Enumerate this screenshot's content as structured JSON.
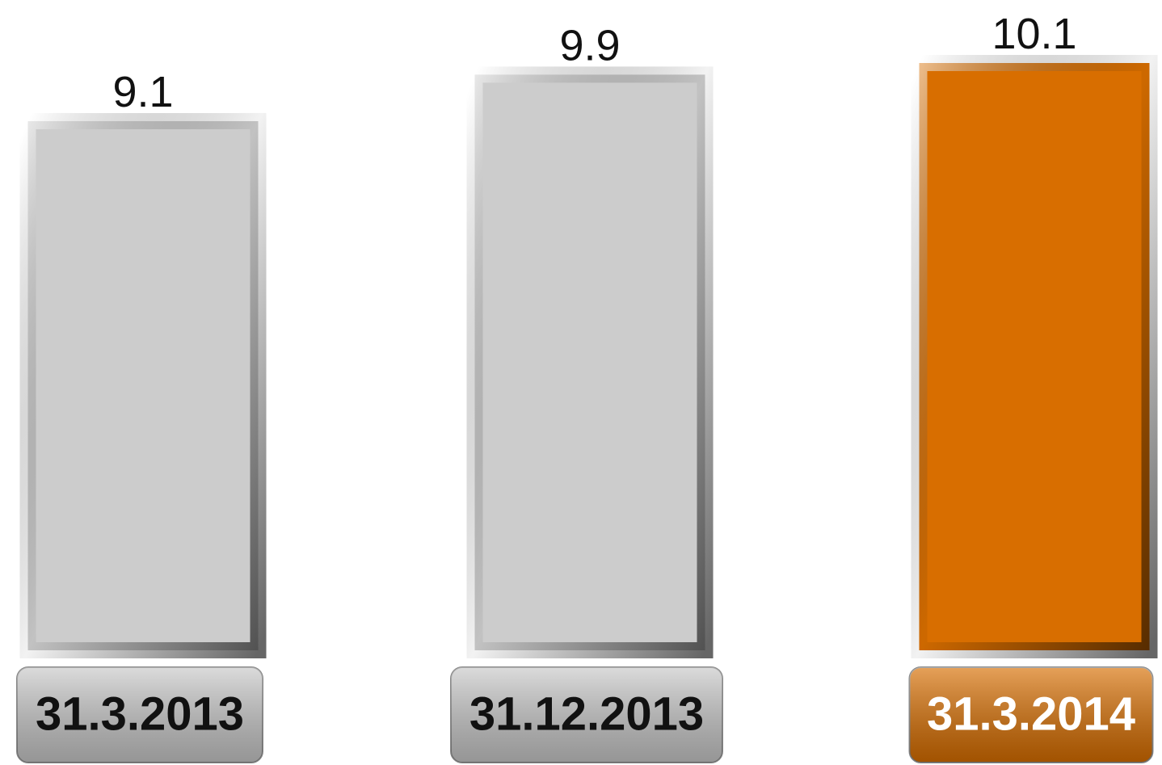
{
  "chart_data": {
    "type": "bar",
    "categories": [
      "31.3.2013",
      "31.12.2013",
      "31.3.2014"
    ],
    "values": [
      9.1,
      9.9,
      10.1
    ],
    "colors": [
      "#cccccc",
      "#cccccc",
      "#d86e00"
    ],
    "label_colors": [
      "#111111",
      "#111111",
      "#ffffff"
    ]
  }
}
